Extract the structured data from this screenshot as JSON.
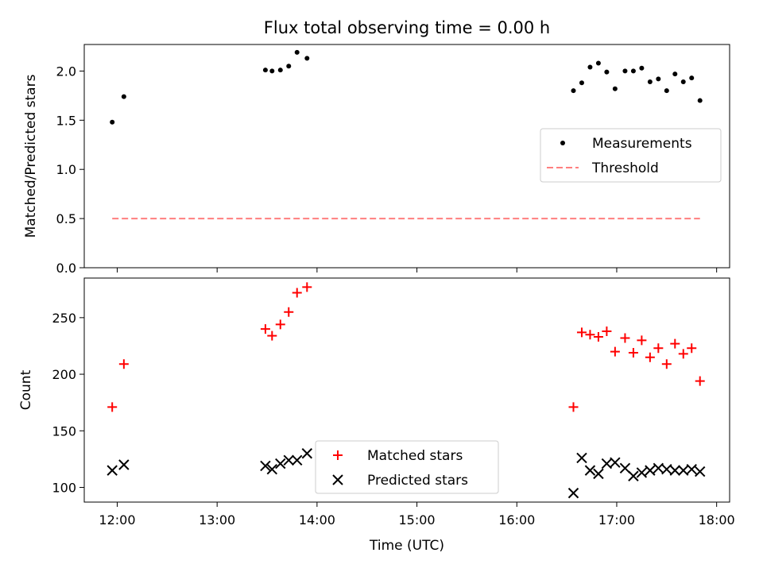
{
  "chart_data": [
    {
      "type": "scatter",
      "title": "Flux total observing time = 0.00 h",
      "xlabel": "",
      "ylabel": "Matched/Predicted stars",
      "ylim": [
        0,
        2.27
      ],
      "yticks": [
        0.0,
        0.5,
        1.0,
        1.5,
        2.0
      ],
      "ytick_labels": [
        "0.0",
        "0.5",
        "1.0",
        "1.5",
        "2.0"
      ],
      "x_unit": "hours UTC",
      "xlim": [
        11.67,
        18.13
      ],
      "xticks": [
        12,
        13,
        14,
        15,
        16,
        17,
        18
      ],
      "legend_position": "center-right",
      "series": [
        {
          "name": "Measurements",
          "marker": "dot",
          "color": "#000000",
          "x": [
            "11:57",
            "12:04",
            "13:29",
            "13:33",
            "13:38",
            "13:43",
            "13:48",
            "13:54",
            "16:34",
            "16:39",
            "16:44",
            "16:49",
            "16:54",
            "16:59",
            "17:05",
            "17:10",
            "17:15",
            "17:20",
            "17:25",
            "17:30",
            "17:35",
            "17:40",
            "17:45",
            "17:50"
          ],
          "y": [
            1.48,
            1.74,
            2.01,
            2.0,
            2.01,
            2.05,
            2.19,
            2.13,
            1.8,
            1.88,
            2.04,
            2.08,
            1.99,
            1.82,
            2.0,
            2.0,
            2.03,
            1.89,
            1.92,
            1.8,
            1.97,
            1.89,
            1.93,
            1.7
          ]
        },
        {
          "name": "Threshold",
          "style": "dashed",
          "color": "#ff7f7f",
          "x": [
            "11:57",
            "17:50"
          ],
          "y": [
            0.5,
            0.5
          ]
        }
      ]
    },
    {
      "type": "scatter",
      "title": "",
      "xlabel": "Time (UTC)",
      "ylabel": "Count",
      "ylim": [
        87,
        285
      ],
      "yticks": [
        100,
        150,
        200,
        250
      ],
      "ytick_labels": [
        "100",
        "150",
        "200",
        "250"
      ],
      "x_unit": "hours UTC",
      "xlim": [
        11.67,
        18.13
      ],
      "xticks": [
        12,
        13,
        14,
        15,
        16,
        17,
        18
      ],
      "xtick_labels": [
        "12:00",
        "13:00",
        "14:00",
        "15:00",
        "16:00",
        "17:00",
        "18:00"
      ],
      "legend_position": "bottom-center",
      "series": [
        {
          "name": "Matched stars",
          "marker": "plus",
          "color": "#ff0000",
          "x": [
            "11:57",
            "12:04",
            "13:29",
            "13:33",
            "13:38",
            "13:43",
            "13:48",
            "13:54",
            "16:34",
            "16:39",
            "16:44",
            "16:49",
            "16:54",
            "16:59",
            "17:05",
            "17:10",
            "17:15",
            "17:20",
            "17:25",
            "17:30",
            "17:35",
            "17:40",
            "17:45",
            "17:50"
          ],
          "y": [
            171,
            209,
            240,
            234,
            244,
            255,
            272,
            277,
            171,
            237,
            235,
            233,
            238,
            220,
            232,
            219,
            230,
            215,
            223,
            209,
            227,
            218,
            223,
            194
          ]
        },
        {
          "name": "Predicted stars",
          "marker": "x",
          "color": "#000000",
          "x": [
            "11:57",
            "12:04",
            "13:29",
            "13:33",
            "13:38",
            "13:43",
            "13:48",
            "13:54",
            "16:34",
            "16:39",
            "16:44",
            "16:49",
            "16:54",
            "16:59",
            "17:05",
            "17:10",
            "17:15",
            "17:20",
            "17:25",
            "17:30",
            "17:35",
            "17:40",
            "17:45",
            "17:50"
          ],
          "y": [
            115,
            120,
            119,
            116,
            121,
            124,
            124,
            130,
            95,
            126,
            115,
            112,
            121,
            122,
            117,
            110,
            113,
            115,
            117,
            116,
            115,
            115,
            116,
            114
          ]
        }
      ]
    }
  ]
}
